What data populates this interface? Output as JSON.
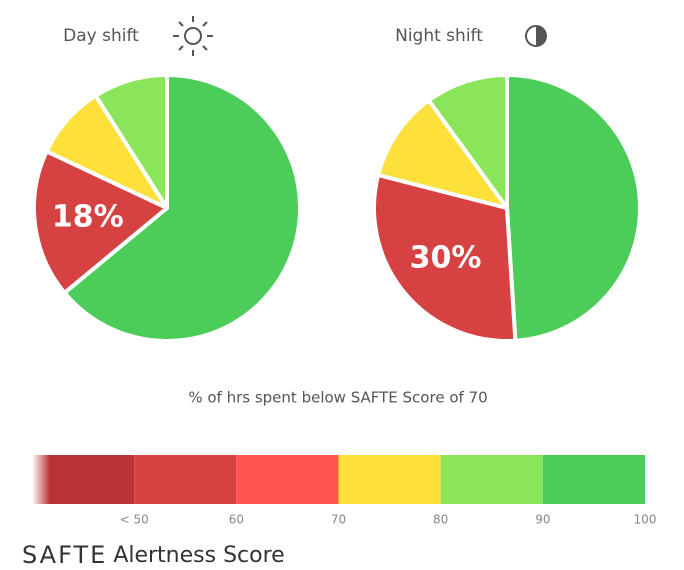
{
  "chart_data": [
    {
      "type": "pie",
      "title": "Day shift",
      "values": [
        64,
        18,
        9,
        9
      ],
      "value_labels": [
        null,
        "18%",
        null,
        null
      ],
      "colors": [
        "#4ccd5a",
        "#d64242",
        "#fde03a",
        "#8be55a"
      ]
    },
    {
      "type": "pie",
      "title": "Night shift",
      "values": [
        49,
        30,
        11,
        10
      ],
      "value_labels": [
        null,
        "30%",
        null,
        null
      ],
      "colors": [
        "#4ccd5a",
        "#d64242",
        "#fde03a",
        "#8be55a"
      ]
    }
  ],
  "caption": "% of hrs spent below SAFTE Score of 70",
  "scale": {
    "title_bold": "SAFTE",
    "title_rest": "Alertness Score",
    "xlim": [
      40,
      100
    ],
    "ticks": [
      {
        "value": 50,
        "label": "< 50"
      },
      60,
      70,
      80,
      90,
      100
    ],
    "colors": [
      "#b83333",
      "#d64242",
      "#ff5550",
      "#fde03a",
      "#8be55a",
      "#4ccd5a"
    ]
  }
}
